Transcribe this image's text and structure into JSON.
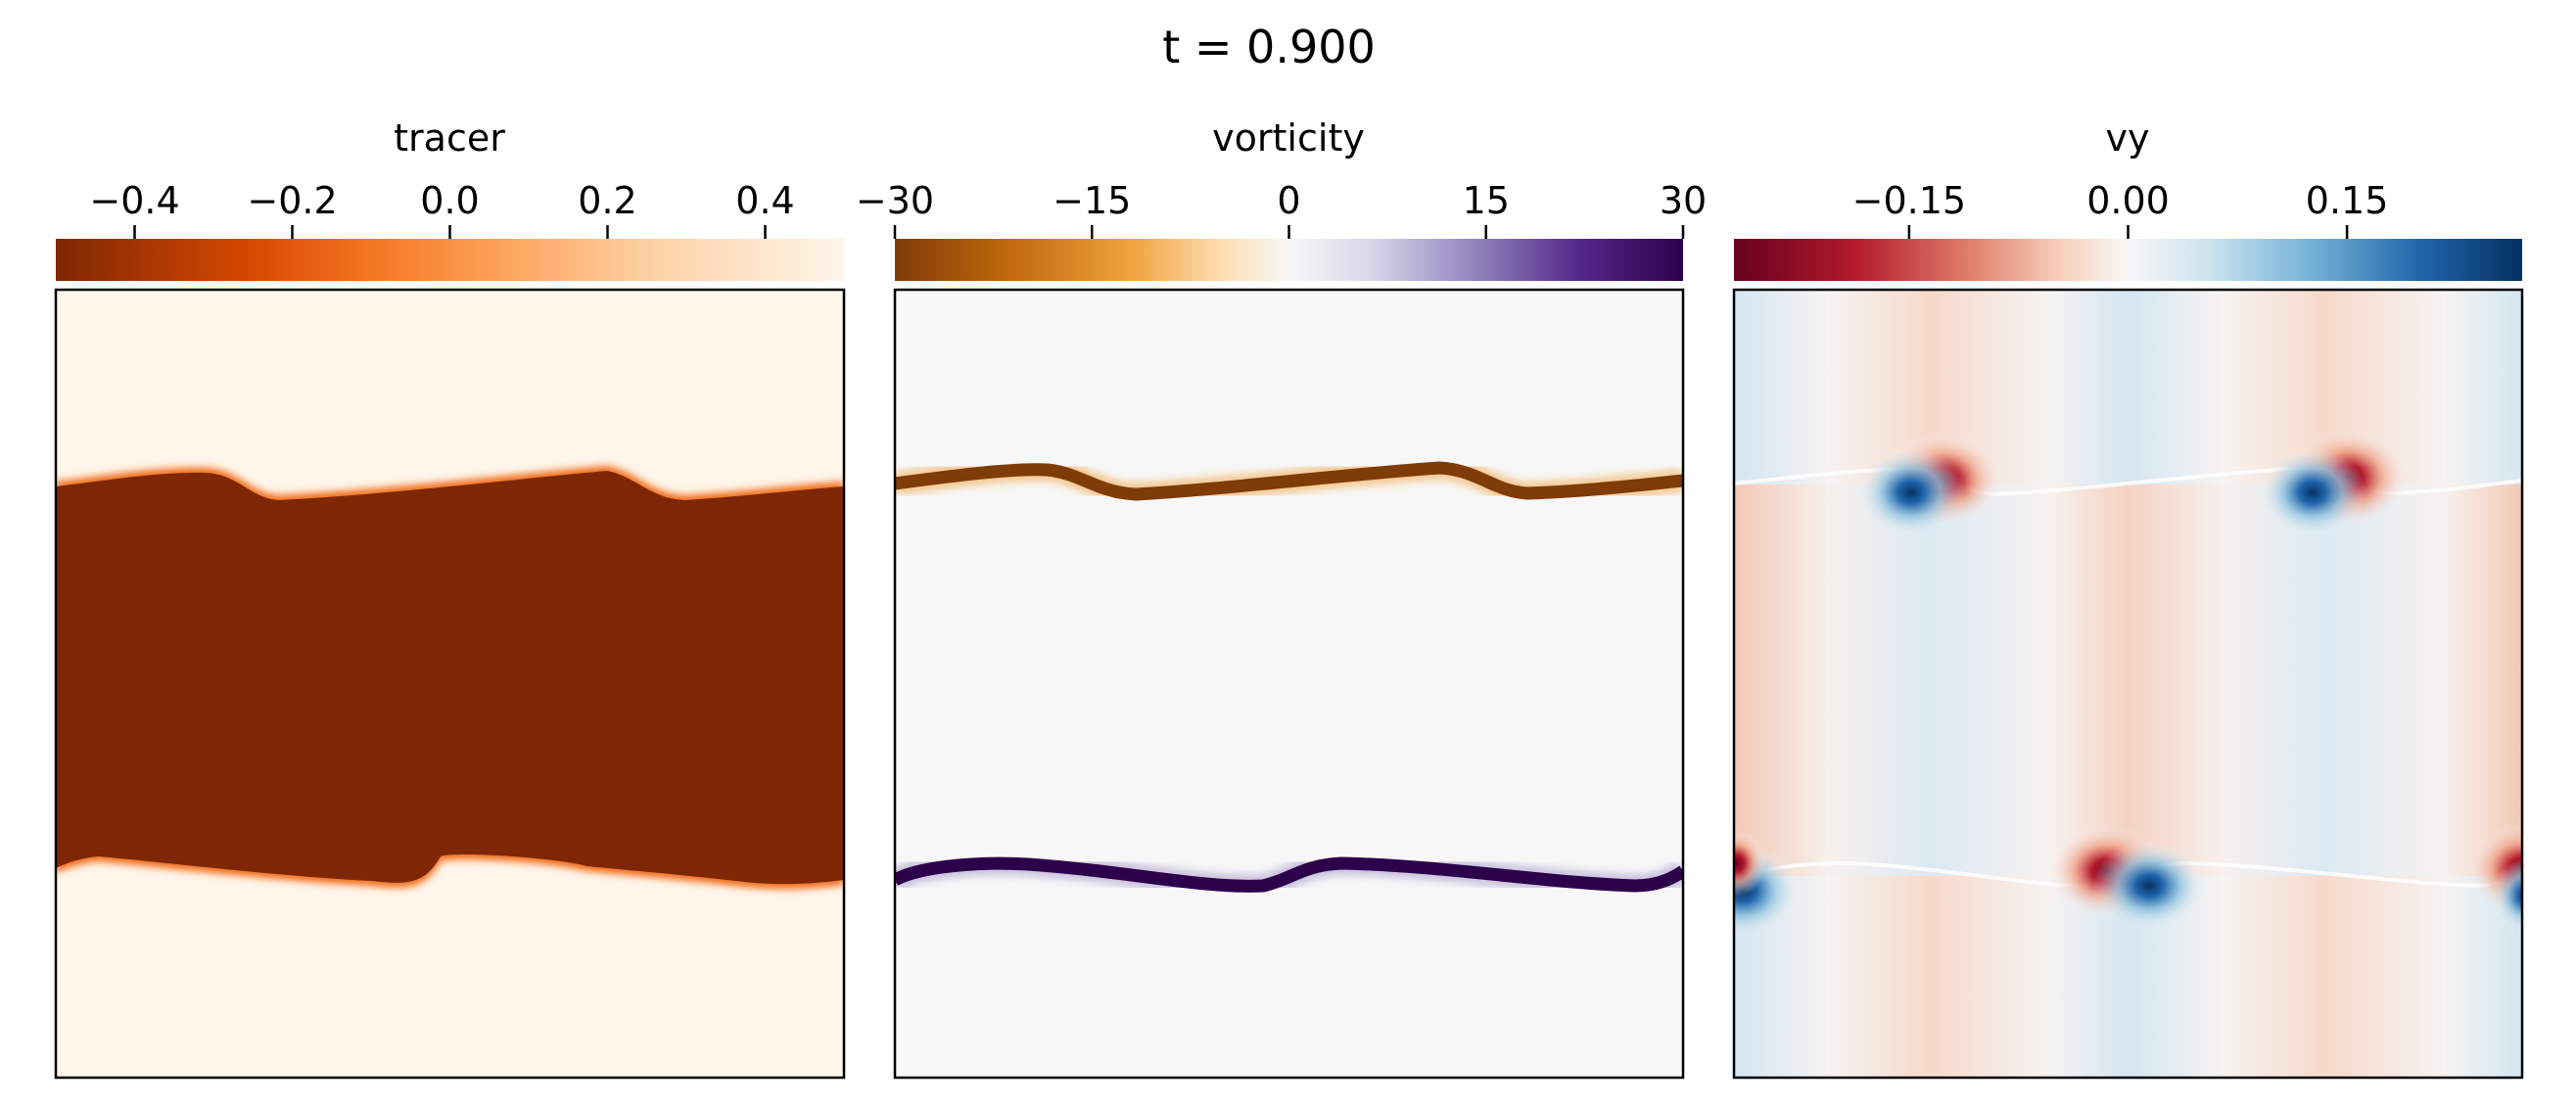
{
  "figure": {
    "title": "t = 0.900"
  },
  "chart_data": [
    {
      "type": "heatmap",
      "colorbar_label": "tracer",
      "colormap": "Oranges_r",
      "colorbar_range": [
        -0.5,
        0.5
      ],
      "colorbar_ticks": [
        -0.4,
        -0.2,
        0.0,
        0.2,
        0.4
      ],
      "colorbar_tick_labels": [
        "−0.4",
        "−0.2",
        "0.0",
        "0.2",
        "0.4"
      ],
      "colors": {
        "band": "#7f2704",
        "background": "#fff5eb",
        "edge": "#f06a16"
      }
    },
    {
      "type": "heatmap",
      "colorbar_label": "vorticity",
      "colormap": "PuOr",
      "colorbar_range": [
        -30,
        30
      ],
      "colorbar_ticks": [
        -30,
        -15,
        0,
        15,
        30
      ],
      "colorbar_tick_labels": [
        "−30",
        "−15",
        "0",
        "15",
        "30"
      ],
      "colors": {
        "negative": "#7f3b08",
        "background": "#f7f7f7",
        "positive": "#2d004b"
      }
    },
    {
      "type": "heatmap",
      "colorbar_label": "vy",
      "colormap": "RdBu",
      "colorbar_range": [
        -0.27,
        0.27
      ],
      "colorbar_ticks": [
        -0.15,
        0.0,
        0.15
      ],
      "colorbar_tick_labels": [
        "−0.15",
        "0.00",
        "0.15"
      ],
      "colors": {
        "negative": "#67001f",
        "background": "#f7f7f7",
        "positive": "#053061"
      }
    }
  ]
}
